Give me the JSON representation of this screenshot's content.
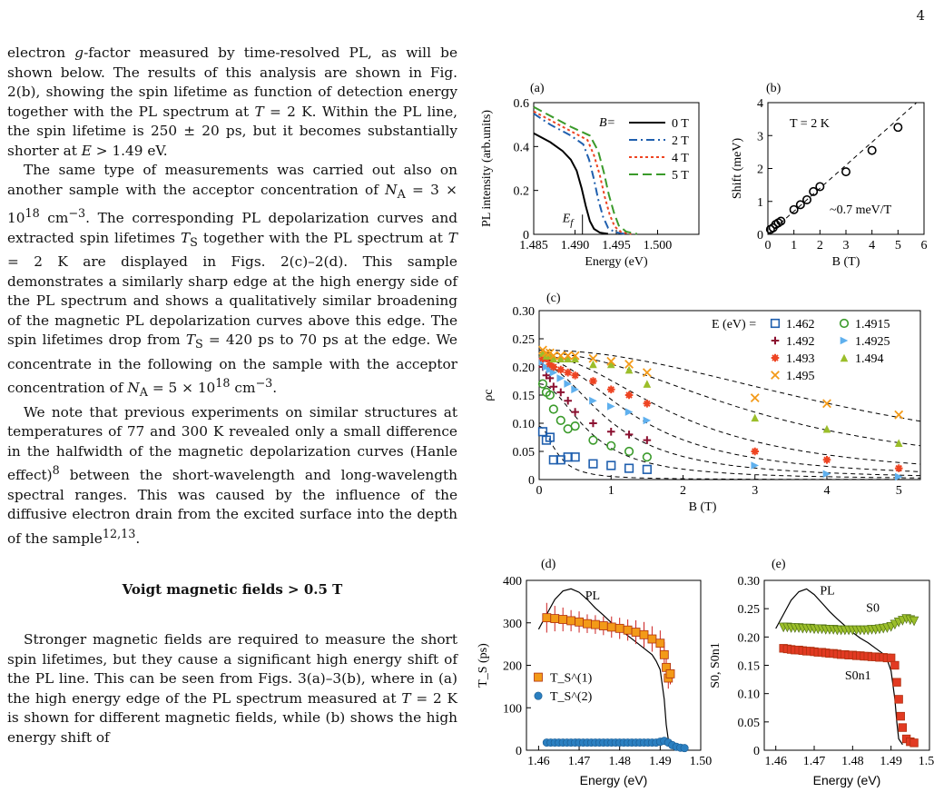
{
  "page_number": "4",
  "text": {
    "p1": "electron g-factor measured by time-resolved PL, as will be shown below. The results of this analysis are shown in Fig. 2(b), showing the spin lifetime as function of detection energy together with the PL spectrum at T = 2 K. Within the PL line, the spin lifetime is 250 ± 20 ps, but it becomes substantially shorter at E > 1.49 eV.",
    "p2": "The same type of measurements was carried out also on another sample with the acceptor concentration of N_A = 3 × 10^18 cm^−3. The corresponding PL depolarization curves and extracted spin lifetimes T_S together with the PL spectrum at T = 2 K are displayed in Figs. 2(c)–2(d). This sample demonstrates a similarly sharp edge at the high energy side of the PL spectrum and shows a qualitatively similar broadening of the magnetic PL depolarization curves above this edge. The spin lifetimes drop from T_S = 420 ps to 70 ps at the edge. We concentrate in the following on the sample with the acceptor concentration of N_A = 5 × 10^18 cm^−3.",
    "p3": "We note that previous experiments on similar structures at temperatures of 77 and 300 K revealed only a small difference in the halfwidth of the magnetic depolarization curves (Hanle effect)^8 between the short-wavelength and long-wavelength spectral ranges. This was caused by the influence of the diffusive electron drain from the excited surface into the depth of the sample^12,13.",
    "heading": "Voigt magnetic fields > 0.5 T",
    "p4": "Stronger magnetic fields are required to measure the short spin lifetimes, but they cause a significant high energy shift of the PL line. This can be seen from Figs. 3(a)–3(b), where in (a) the high energy edge of the PL spectrum measured at T = 2 K is shown for different magnetic fields, while (b) shows the high energy shift of"
  },
  "chart_data": [
    {
      "panel": "(a)",
      "type": "line",
      "xlabel": "Energy (eV)",
      "ylabel": "PL intensity (arb.units)",
      "xlim": [
        1.485,
        1.505
      ],
      "ylim": [
        0,
        0.6
      ],
      "xticks": [
        "1.485",
        "1.490",
        "1.495",
        "1.500"
      ],
      "yticks": [
        "0",
        "0.2",
        "0.4",
        "0.6"
      ],
      "legend_title": "B=",
      "annotation": "E_f",
      "series": [
        {
          "name": "0 T",
          "color": "#000000",
          "dash": "",
          "x": [
            1.485,
            1.487,
            1.4885,
            1.4895,
            1.4902,
            1.4908,
            1.4913,
            1.4918,
            1.4923,
            1.493,
            1.494
          ],
          "y": [
            0.46,
            0.42,
            0.38,
            0.34,
            0.29,
            0.21,
            0.13,
            0.06,
            0.025,
            0.008,
            0.002
          ]
        },
        {
          "name": "2 T",
          "color": "#1f5fae",
          "dash": "9,4,2,4",
          "x": [
            1.485,
            1.487,
            1.4895,
            1.491,
            1.4917,
            1.4923,
            1.4928,
            1.4934,
            1.494,
            1.4948,
            1.496
          ],
          "y": [
            0.55,
            0.5,
            0.45,
            0.41,
            0.34,
            0.25,
            0.16,
            0.08,
            0.03,
            0.01,
            0.002
          ]
        },
        {
          "name": "4 T",
          "color": "#ee4422",
          "dash": "3,3",
          "x": [
            1.485,
            1.487,
            1.4895,
            1.4915,
            1.4923,
            1.493,
            1.4936,
            1.4942,
            1.4948,
            1.4956,
            1.4968
          ],
          "y": [
            0.56,
            0.52,
            0.47,
            0.43,
            0.36,
            0.27,
            0.17,
            0.09,
            0.035,
            0.01,
            0.002
          ]
        },
        {
          "name": "5 T",
          "color": "#3a9a2a",
          "dash": "10,5",
          "x": [
            1.485,
            1.487,
            1.4895,
            1.4918,
            1.4928,
            1.4935,
            1.4941,
            1.4947,
            1.4953,
            1.4962,
            1.4975
          ],
          "y": [
            0.58,
            0.54,
            0.49,
            0.45,
            0.38,
            0.28,
            0.18,
            0.1,
            0.04,
            0.012,
            0.002
          ]
        }
      ]
    },
    {
      "panel": "(b)",
      "type": "scatter",
      "xlabel": "B (T)",
      "ylabel": "Shift (meV)",
      "xlim": [
        0,
        6
      ],
      "ylim": [
        0,
        4
      ],
      "xticks": [
        "0",
        "1",
        "2",
        "3",
        "4",
        "5",
        "6"
      ],
      "yticks": [
        "0",
        "1",
        "2",
        "3",
        "4"
      ],
      "annotations": [
        "T = 2 K",
        "~0.7 meV/T"
      ],
      "x": [
        0.1,
        0.2,
        0.3,
        0.4,
        0.5,
        1.0,
        1.25,
        1.5,
        1.75,
        2.0,
        3.0,
        4.0,
        5.0
      ],
      "y": [
        0.15,
        0.2,
        0.3,
        0.35,
        0.4,
        0.75,
        0.9,
        1.05,
        1.3,
        1.45,
        1.9,
        2.55,
        3.25
      ],
      "fit_slope": 0.7
    },
    {
      "panel": "(c)",
      "type": "scatter",
      "xlabel": "B (T)",
      "ylabel": "ρc",
      "xlim": [
        0,
        5.3
      ],
      "ylim": [
        0,
        0.3
      ],
      "xticks": [
        "0",
        "1",
        "2",
        "3",
        "4",
        "5"
      ],
      "yticks": [
        "0",
        "0.05",
        "0.10",
        "0.15",
        "0.20",
        "0.25",
        "0.30"
      ],
      "legend_title": "E (eV) =",
      "series": [
        {
          "name": "1.462",
          "color": "#1f5fae",
          "marker": "square",
          "x": [
            0.05,
            0.1,
            0.15,
            0.2,
            0.3,
            0.4,
            0.5,
            0.75,
            1.0,
            1.25,
            1.5
          ],
          "y": [
            0.085,
            0.07,
            0.075,
            0.035,
            0.035,
            0.04,
            0.04,
            0.028,
            0.025,
            0.02,
            0.018
          ],
          "fit0": 0.095,
          "fitB": 0.25
        },
        {
          "name": "1.4915",
          "color": "#3a9a2a",
          "marker": "circle",
          "x": [
            0.05,
            0.1,
            0.15,
            0.2,
            0.3,
            0.4,
            0.5,
            0.75,
            1.0,
            1.25,
            1.5
          ],
          "y": [
            0.17,
            0.155,
            0.15,
            0.125,
            0.105,
            0.09,
            0.095,
            0.07,
            0.06,
            0.05,
            0.04
          ],
          "fit0": 0.17,
          "fitB": 0.7
        },
        {
          "name": "1.492",
          "color": "#8b1030",
          "marker": "plus",
          "x": [
            0.05,
            0.1,
            0.15,
            0.2,
            0.3,
            0.4,
            0.5,
            0.75,
            1.0,
            1.25,
            1.5
          ],
          "y": [
            0.2,
            0.185,
            0.18,
            0.165,
            0.155,
            0.14,
            0.12,
            0.1,
            0.085,
            0.08,
            0.07
          ],
          "fit0": 0.205,
          "fitB": 1.0
        },
        {
          "name": "1.4925",
          "color": "#5fb0ee",
          "marker": "triangle-right",
          "x": [
            0.05,
            0.1,
            0.15,
            0.2,
            0.3,
            0.4,
            0.5,
            0.75,
            1.0,
            1.25,
            1.5,
            3.0,
            4.0,
            5.0
          ],
          "y": [
            0.21,
            0.2,
            0.195,
            0.19,
            0.18,
            0.17,
            0.16,
            0.14,
            0.13,
            0.12,
            0.105,
            0.025,
            0.01,
            0.005
          ],
          "fit0": 0.215,
          "fitB": 1.4
        },
        {
          "name": "1.493",
          "color": "#ee4422",
          "marker": "star",
          "x": [
            0.05,
            0.1,
            0.15,
            0.2,
            0.3,
            0.4,
            0.5,
            0.75,
            1.0,
            1.25,
            1.5,
            3.0,
            4.0,
            5.0
          ],
          "y": [
            0.215,
            0.215,
            0.205,
            0.2,
            0.195,
            0.19,
            0.185,
            0.175,
            0.16,
            0.15,
            0.135,
            0.05,
            0.035,
            0.02
          ],
          "fit0": 0.22,
          "fitB": 2.0
        },
        {
          "name": "1.494",
          "color": "#9bbe2a",
          "marker": "triangle-up",
          "x": [
            0.05,
            0.1,
            0.15,
            0.2,
            0.3,
            0.4,
            0.5,
            0.75,
            1.0,
            1.25,
            1.5,
            3.0,
            4.0,
            5.0
          ],
          "y": [
            0.225,
            0.22,
            0.22,
            0.215,
            0.215,
            0.215,
            0.215,
            0.205,
            0.205,
            0.195,
            0.17,
            0.11,
            0.09,
            0.065
          ],
          "fit0": 0.225,
          "fitB": 3.2
        },
        {
          "name": "1.495",
          "color": "#f39a18",
          "marker": "x",
          "x": [
            0.05,
            0.1,
            0.15,
            0.2,
            0.3,
            0.4,
            0.5,
            0.75,
            1.0,
            1.25,
            1.5,
            3.0,
            4.0,
            5.0
          ],
          "y": [
            0.23,
            0.225,
            0.225,
            0.22,
            0.22,
            0.22,
            0.22,
            0.215,
            0.21,
            0.205,
            0.19,
            0.145,
            0.135,
            0.115
          ],
          "fit0": 0.23,
          "fitB": 4.8
        }
      ]
    },
    {
      "panel": "(d)",
      "type": "scatter",
      "xlabel": "Energy (eV)",
      "ylabel": "T_S (ps)",
      "xlim": [
        1.457,
        1.5
      ],
      "ylim": [
        0,
        400
      ],
      "xticks": [
        "1.46",
        "1.47",
        "1.48",
        "1.49",
        "1.50"
      ],
      "yticks": [
        "0",
        "100",
        "200",
        "300",
        "400"
      ],
      "pl_label": "PL",
      "series": [
        {
          "name": "T_S^(1)",
          "color": "#f39a18",
          "marker": "square",
          "x": [
            1.462,
            1.464,
            1.466,
            1.468,
            1.47,
            1.472,
            1.474,
            1.476,
            1.478,
            1.48,
            1.482,
            1.484,
            1.486,
            1.488,
            1.49,
            1.491,
            1.4915,
            1.492,
            1.4925
          ],
          "y": [
            312,
            310,
            308,
            305,
            302,
            298,
            296,
            293,
            290,
            287,
            283,
            278,
            272,
            262,
            252,
            225,
            195,
            170,
            180
          ],
          "err": [
            35,
            30,
            28,
            25,
            25,
            22,
            22,
            22,
            25,
            25,
            25,
            28,
            30,
            30,
            30,
            30,
            25,
            25,
            25
          ]
        },
        {
          "name": "T_S^(2)",
          "color": "#2a7fc0",
          "marker": "circle",
          "x": [
            1.462,
            1.463,
            1.464,
            1.465,
            1.466,
            1.467,
            1.468,
            1.469,
            1.47,
            1.471,
            1.472,
            1.473,
            1.474,
            1.475,
            1.476,
            1.477,
            1.478,
            1.479,
            1.48,
            1.481,
            1.482,
            1.483,
            1.484,
            1.485,
            1.486,
            1.487,
            1.488,
            1.489,
            1.49,
            1.491,
            1.492,
            1.493,
            1.494,
            1.495,
            1.496
          ],
          "y": [
            18,
            18,
            18,
            18,
            18,
            18,
            18,
            18,
            18,
            18,
            18,
            18,
            18,
            18,
            18,
            18,
            18,
            18,
            18,
            18,
            18,
            18,
            18,
            18,
            18,
            18,
            18,
            18,
            20,
            22,
            18,
            12,
            8,
            6,
            5
          ]
        }
      ],
      "pl_curve": {
        "x": [
          1.46,
          1.462,
          1.464,
          1.466,
          1.468,
          1.47,
          1.472,
          1.474,
          1.476,
          1.478,
          1.48,
          1.482,
          1.484,
          1.486,
          1.488,
          1.489,
          1.49,
          1.491,
          1.4915,
          1.492,
          1.493
        ],
        "y": [
          285,
          320,
          355,
          375,
          380,
          372,
          355,
          335,
          318,
          300,
          285,
          270,
          255,
          240,
          225,
          210,
          190,
          120,
          60,
          25,
          15
        ]
      }
    },
    {
      "panel": "(e)",
      "type": "scatter",
      "xlabel": "Energy (eV)",
      "ylabel": "S0, S0n1",
      "xlim": [
        1.457,
        1.5
      ],
      "ylim": [
        0,
        0.3
      ],
      "xticks": [
        "1.46",
        "1.47",
        "1.48",
        "1.49",
        "1.50"
      ],
      "yticks": [
        "0",
        "0.05",
        "0.10",
        "0.15",
        "0.20",
        "0.25",
        "0.30"
      ],
      "pl_label": "PL",
      "labels": [
        "S0",
        "S0n1"
      ],
      "series": [
        {
          "name": "S0",
          "color": "#9bbe2a",
          "marker": "triangle-down",
          "x": [
            1.462,
            1.463,
            1.464,
            1.465,
            1.466,
            1.467,
            1.468,
            1.469,
            1.47,
            1.471,
            1.472,
            1.473,
            1.474,
            1.475,
            1.476,
            1.477,
            1.478,
            1.479,
            1.48,
            1.481,
            1.482,
            1.483,
            1.484,
            1.485,
            1.486,
            1.487,
            1.488,
            1.489,
            1.49,
            1.491,
            1.492,
            1.493,
            1.494,
            1.495,
            1.496
          ],
          "y": [
            0.217,
            0.217,
            0.216,
            0.216,
            0.216,
            0.215,
            0.215,
            0.215,
            0.214,
            0.214,
            0.214,
            0.213,
            0.213,
            0.213,
            0.212,
            0.212,
            0.212,
            0.212,
            0.212,
            0.212,
            0.212,
            0.212,
            0.212,
            0.213,
            0.213,
            0.214,
            0.215,
            0.216,
            0.218,
            0.222,
            0.226,
            0.229,
            0.232,
            0.23,
            0.228
          ]
        },
        {
          "name": "S0n1",
          "color": "#e23a22",
          "marker": "square",
          "x": [
            1.462,
            1.463,
            1.464,
            1.465,
            1.466,
            1.467,
            1.468,
            1.469,
            1.47,
            1.471,
            1.472,
            1.473,
            1.474,
            1.475,
            1.476,
            1.477,
            1.478,
            1.479,
            1.48,
            1.481,
            1.482,
            1.483,
            1.484,
            1.485,
            1.486,
            1.487,
            1.488,
            1.489,
            1.49,
            1.491,
            1.4915,
            1.492,
            1.4925,
            1.493,
            1.494,
            1.495,
            1.496
          ],
          "y": [
            0.18,
            0.179,
            0.178,
            0.177,
            0.177,
            0.176,
            0.175,
            0.175,
            0.174,
            0.173,
            0.173,
            0.172,
            0.171,
            0.171,
            0.17,
            0.169,
            0.169,
            0.168,
            0.168,
            0.167,
            0.167,
            0.166,
            0.166,
            0.165,
            0.165,
            0.164,
            0.164,
            0.163,
            0.163,
            0.15,
            0.12,
            0.09,
            0.06,
            0.04,
            0.02,
            0.015,
            0.013
          ]
        }
      ],
      "pl_curve": {
        "x": [
          1.46,
          1.462,
          1.464,
          1.466,
          1.468,
          1.47,
          1.472,
          1.474,
          1.476,
          1.478,
          1.48,
          1.482,
          1.484,
          1.486,
          1.488,
          1.489,
          1.49,
          1.491,
          1.4915,
          1.492,
          1.493
        ],
        "y": [
          0.215,
          0.24,
          0.265,
          0.28,
          0.285,
          0.275,
          0.26,
          0.245,
          0.232,
          0.22,
          0.208,
          0.198,
          0.19,
          0.18,
          0.17,
          0.16,
          0.14,
          0.09,
          0.05,
          0.02,
          0.01
        ]
      }
    }
  ]
}
